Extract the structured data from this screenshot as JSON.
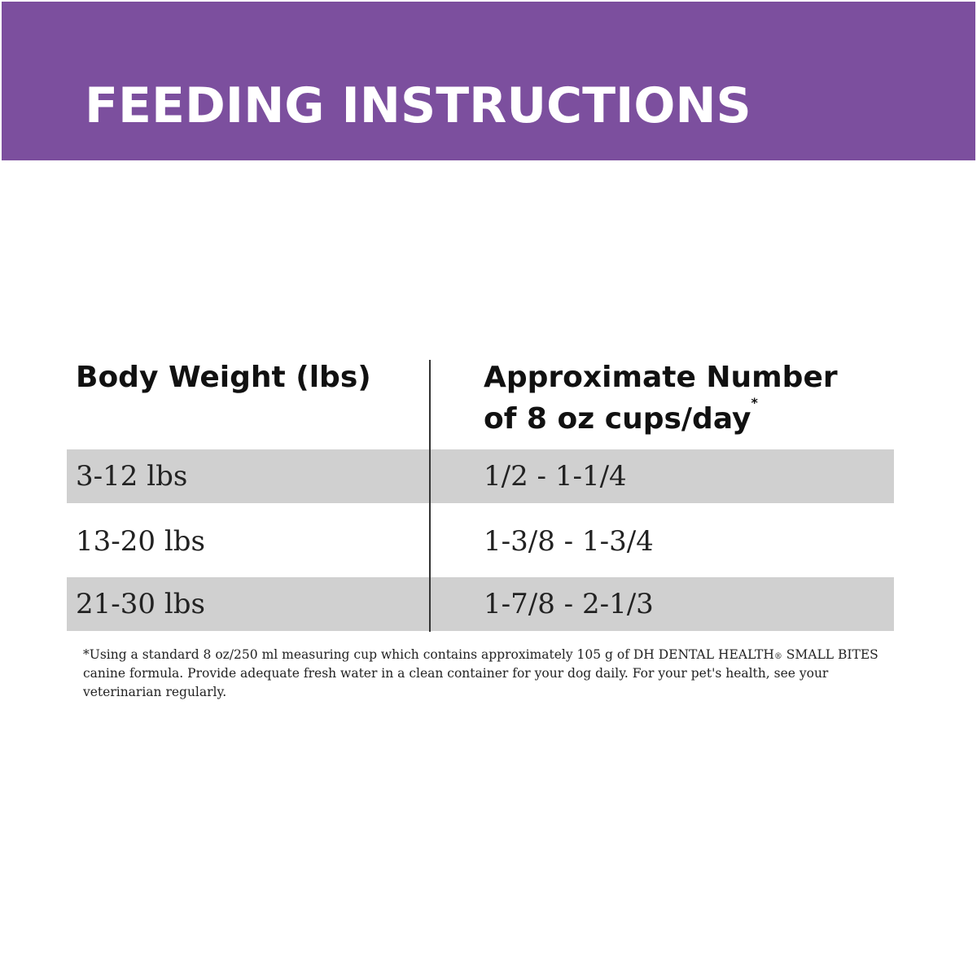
{
  "header": {
    "title": "FEEDING INSTRUCTIONS",
    "background_color": "#7c4f9e",
    "text_color": "#ffffff"
  },
  "table": {
    "columns": [
      {
        "label": "Body Weight (lbs)"
      },
      {
        "label_line1": "Approximate Number",
        "label_line2": "of 8 oz cups/day",
        "footnote_marker": "*"
      }
    ],
    "rows": [
      {
        "weight": "3-12 lbs",
        "cups": "1/2 - 1-1/4"
      },
      {
        "weight": "13-20 lbs",
        "cups": "1-3/8 - 1-3/4"
      },
      {
        "weight": "21-30 lbs",
        "cups": "1-7/8 - 2-1/3"
      }
    ],
    "shaded_row_color": "#d0d0d0"
  },
  "footnote": {
    "text_before_mark": "*Using a standard 8 oz/250 ml measuring cup which contains approximately 105 g of DH DENTAL HEALTH",
    "registered_mark": "®",
    "text_after_mark": " SMALL BITES canine formula. Provide adequate fresh water in a clean container for your dog daily. For your pet's health, see your veterinarian regularly."
  }
}
